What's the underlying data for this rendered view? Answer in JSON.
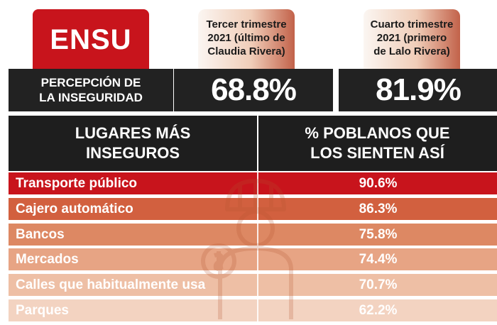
{
  "header": {
    "badge": "ENSU",
    "metric_label_lines": [
      "PERCEPCIÓN DE",
      "LA INSEGURIDAD"
    ]
  },
  "quarters": [
    {
      "lines": [
        "Tercer trimestre",
        "2021 (último de",
        "Claudia Rivera)"
      ],
      "value": "68.8%"
    },
    {
      "lines": [
        "Cuarto trimestre",
        "2021 (primero",
        "de Lalo Rivera)"
      ],
      "value": "81.9%"
    }
  ],
  "chart_data": {
    "type": "table",
    "columns": [
      "LUGARES MÁS INSEGUROS",
      "% POBLANOS QUE LOS SIENTEN ASÍ"
    ],
    "column_lines": [
      [
        "LUGARES MÁS",
        "INSEGUROS"
      ],
      [
        "% POBLANOS QUE",
        "LOS SIENTEN ASÍ"
      ]
    ],
    "categories": [
      "Transporte público",
      "Cajero automático",
      "Bancos",
      "Mercados",
      "Calles que habitualmente usa",
      "Parques"
    ],
    "values": [
      90.6,
      86.3,
      75.8,
      74.4,
      70.7,
      62.2
    ],
    "value_labels": [
      "90.6%",
      "86.3%",
      "75.8%",
      "74.4%",
      "70.7%",
      "62.2%"
    ],
    "row_colors": [
      "#c8141c",
      "#d2603f",
      "#dd8863",
      "#e7a484",
      "#eebfa5",
      "#f3d3c1"
    ]
  },
  "colors": {
    "accent": "#c8141c",
    "dark": "#1e1e1e"
  }
}
